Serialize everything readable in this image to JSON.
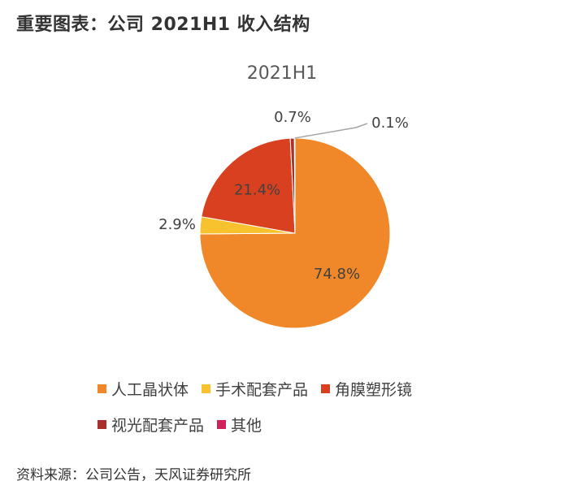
{
  "heading": "重要图表：公司 2021H1 收入结构",
  "source": "资料来源：公司公告，天风证券研究所",
  "chart_data": {
    "type": "pie",
    "title": "2021H1",
    "slices": [
      {
        "name": "人工晶状体",
        "value": 74.8,
        "label": "74.8%",
        "color": "#F0882A"
      },
      {
        "name": "手术配套产品",
        "value": 2.9,
        "label": "2.9%",
        "color": "#F8C22E"
      },
      {
        "name": "角膜塑形镜",
        "value": 21.4,
        "label": "21.4%",
        "color": "#D9401F"
      },
      {
        "name": "视光配套产品",
        "value": 0.7,
        "label": "0.7%",
        "color": "#A8312B"
      },
      {
        "name": "其他",
        "value": 0.1,
        "label": "0.1%",
        "color": "#D0205E"
      }
    ],
    "legend": {
      "placement": "bottom"
    }
  }
}
